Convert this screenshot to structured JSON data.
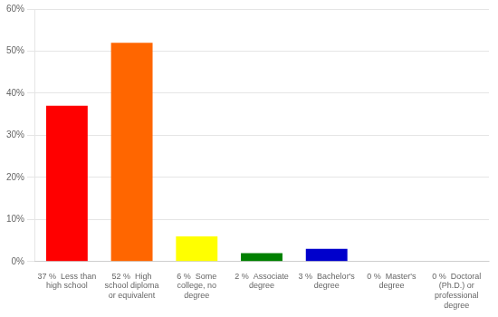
{
  "chart_data": {
    "type": "bar",
    "categories": [
      "37 %  Less than\nhigh school",
      "52 %  High\nschool diploma\nor equivalent",
      "6 %  Some\ncollege, no\ndegree",
      "2 %  Associate\ndegree",
      "3 %  Bachelor's\ndegree",
      "0 %  Master's\ndegree",
      "0 %  Doctoral\n(Ph.D.) or\nprofessional\ndegree"
    ],
    "values": [
      37,
      52,
      6,
      2,
      3,
      0,
      0
    ],
    "colors": [
      "#FF0000",
      "#FF6600",
      "#FFFF00",
      "#008000",
      "#0000CC",
      "#9900CC",
      "#FF33FF"
    ],
    "ylim": [
      0,
      60
    ],
    "yticks": [
      {
        "value": 0,
        "label": "0%"
      },
      {
        "value": 10,
        "label": "10%"
      },
      {
        "value": 20,
        "label": "20%"
      },
      {
        "value": 30,
        "label": "30%"
      },
      {
        "value": 40,
        "label": "40%"
      },
      {
        "value": 50,
        "label": "50%"
      },
      {
        "value": 60,
        "label": "60%"
      }
    ],
    "grid": true
  }
}
